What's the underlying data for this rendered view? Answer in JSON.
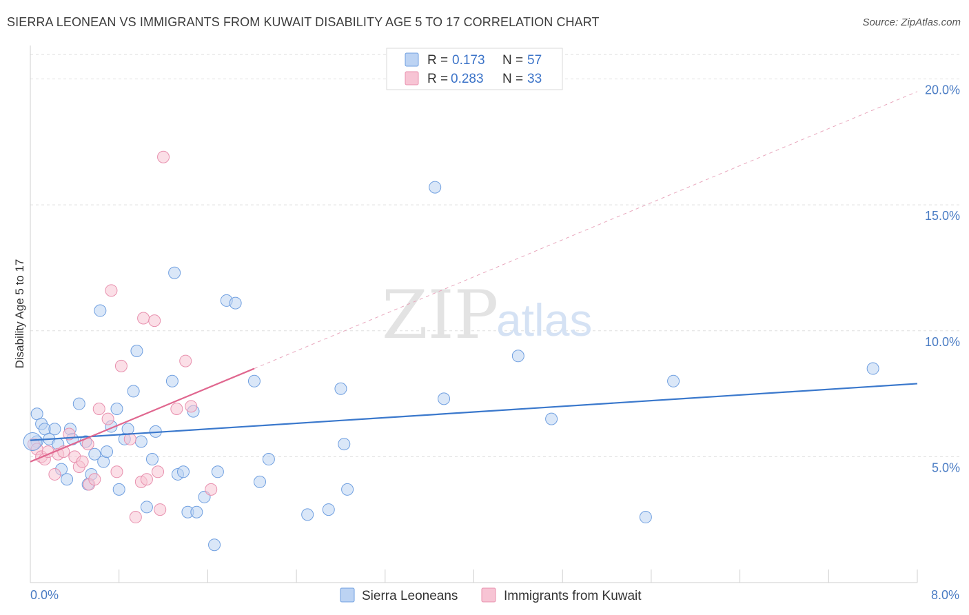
{
  "title": "SIERRA LEONEAN VS IMMIGRANTS FROM KUWAIT DISABILITY AGE 5 TO 17 CORRELATION CHART",
  "source": "Source: ZipAtlas.com",
  "watermark": {
    "zip": "ZIP",
    "atlas": "atlas"
  },
  "colors": {
    "blue": "#6f9fe0",
    "blue_fill": "#bcd3f3",
    "blue_line": "#3a78cc",
    "pink": "#e890ae",
    "pink_fill": "#f7c4d4",
    "pink_line": "#e0678f",
    "tick_text": "#4a7cc4"
  },
  "legend": {
    "r_label": "R =",
    "n_label": "N =",
    "rows": [
      {
        "r": "0.173",
        "n": "57"
      },
      {
        "r": "0.283",
        "n": "33"
      }
    ]
  },
  "chart_data": {
    "type": "scatter",
    "title": "SIERRA LEONEAN VS IMMIGRANTS FROM KUWAIT DISABILITY AGE 5 TO 17 CORRELATION CHART",
    "xlabel": "",
    "ylabel": "Disability Age 5 to 17",
    "xlim": [
      0,
      8
    ],
    "ylim": [
      0,
      21
    ],
    "x_tick_labels": [
      "0.0%",
      "8.0%"
    ],
    "y_ticks": [
      5,
      10,
      15,
      20
    ],
    "y_tick_labels": [
      "5.0%",
      "10.0%",
      "15.0%",
      "20.0%"
    ],
    "grid": true,
    "legend_position": "bottom",
    "series": [
      {
        "name": "Sierra Leoneans",
        "color": "#6f9fe0",
        "trend": {
          "x": [
            0,
            8
          ],
          "y": [
            5.65,
            7.9
          ],
          "style": "solid"
        },
        "points": [
          [
            0.06,
            5.6
          ],
          [
            0.06,
            6.7
          ],
          [
            0.1,
            6.3
          ],
          [
            0.13,
            6.1
          ],
          [
            0.17,
            5.7
          ],
          [
            0.22,
            6.1
          ],
          [
            0.25,
            5.5
          ],
          [
            0.28,
            4.5
          ],
          [
            0.33,
            4.1
          ],
          [
            0.36,
            6.1
          ],
          [
            0.38,
            5.7
          ],
          [
            0.44,
            7.1
          ],
          [
            0.5,
            5.6
          ],
          [
            0.52,
            3.9
          ],
          [
            0.55,
            4.3
          ],
          [
            0.58,
            5.1
          ],
          [
            0.63,
            10.8
          ],
          [
            0.66,
            4.8
          ],
          [
            0.69,
            5.2
          ],
          [
            0.73,
            6.2
          ],
          [
            0.78,
            6.9
          ],
          [
            0.8,
            3.7
          ],
          [
            0.85,
            5.7
          ],
          [
            0.88,
            6.1
          ],
          [
            0.93,
            7.6
          ],
          [
            0.96,
            9.2
          ],
          [
            1.0,
            5.6
          ],
          [
            1.05,
            3.0
          ],
          [
            1.1,
            4.9
          ],
          [
            1.13,
            6.0
          ],
          [
            1.28,
            8.0
          ],
          [
            1.3,
            12.3
          ],
          [
            1.33,
            4.3
          ],
          [
            1.38,
            4.4
          ],
          [
            1.42,
            2.8
          ],
          [
            1.47,
            6.8
          ],
          [
            1.5,
            2.8
          ],
          [
            1.57,
            3.4
          ],
          [
            1.66,
            1.5
          ],
          [
            1.69,
            4.4
          ],
          [
            1.77,
            11.2
          ],
          [
            1.85,
            11.1
          ],
          [
            2.02,
            8.0
          ],
          [
            2.07,
            4.0
          ],
          [
            2.15,
            4.9
          ],
          [
            2.5,
            2.7
          ],
          [
            2.69,
            2.9
          ],
          [
            2.8,
            7.7
          ],
          [
            2.83,
            5.5
          ],
          [
            2.86,
            3.7
          ],
          [
            3.65,
            15.7
          ],
          [
            3.73,
            7.3
          ],
          [
            4.4,
            9.0
          ],
          [
            4.7,
            6.5
          ],
          [
            5.55,
            2.6
          ],
          [
            5.8,
            8.0
          ],
          [
            7.6,
            8.5
          ]
        ]
      },
      {
        "name": "Immigrants from Kuwait",
        "color": "#e890ae",
        "trend": {
          "x": [
            0,
            2.02
          ],
          "y": [
            4.8,
            8.5
          ],
          "style": "solid"
        },
        "trend_extended": {
          "x": [
            2.02,
            8
          ],
          "y": [
            8.5,
            19.5
          ],
          "style": "dashed"
        },
        "points": [
          [
            0.03,
            5.5
          ],
          [
            0.06,
            5.3
          ],
          [
            0.1,
            5.0
          ],
          [
            0.13,
            4.9
          ],
          [
            0.16,
            5.2
          ],
          [
            0.22,
            4.3
          ],
          [
            0.25,
            5.1
          ],
          [
            0.3,
            5.2
          ],
          [
            0.35,
            5.9
          ],
          [
            0.4,
            5.0
          ],
          [
            0.44,
            4.6
          ],
          [
            0.47,
            4.8
          ],
          [
            0.52,
            5.5
          ],
          [
            0.53,
            3.9
          ],
          [
            0.58,
            4.1
          ],
          [
            0.62,
            6.9
          ],
          [
            0.7,
            6.5
          ],
          [
            0.73,
            11.6
          ],
          [
            0.78,
            4.4
          ],
          [
            0.82,
            8.6
          ],
          [
            0.9,
            5.7
          ],
          [
            0.95,
            2.6
          ],
          [
            1.0,
            4.0
          ],
          [
            1.02,
            10.5
          ],
          [
            1.05,
            4.1
          ],
          [
            1.12,
            10.4
          ],
          [
            1.15,
            4.4
          ],
          [
            1.17,
            2.9
          ],
          [
            1.2,
            16.9
          ],
          [
            1.32,
            6.9
          ],
          [
            1.4,
            8.8
          ],
          [
            1.45,
            7.0
          ],
          [
            1.63,
            3.7
          ]
        ]
      }
    ]
  },
  "bottom_legend": [
    {
      "label": "Sierra Leoneans"
    },
    {
      "label": "Immigrants from Kuwait"
    }
  ]
}
